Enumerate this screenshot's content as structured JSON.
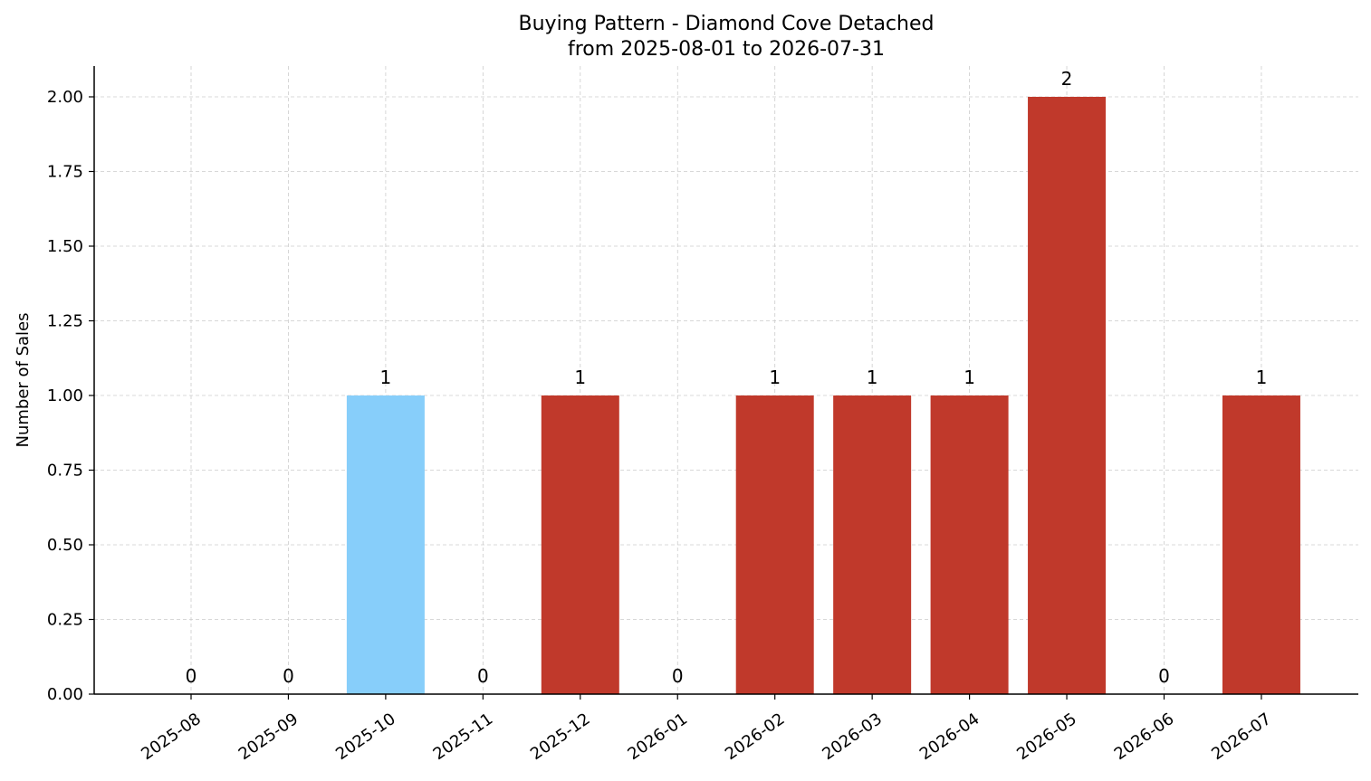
{
  "chart_data": {
    "type": "bar",
    "title": "Buying Pattern - Diamond Cove Detached",
    "subtitle": "from 2025-08-01 to 2026-07-31",
    "xlabel": "",
    "ylabel": "Number of Sales",
    "categories": [
      "2025-08",
      "2025-09",
      "2025-10",
      "2025-11",
      "2025-12",
      "2026-01",
      "2026-02",
      "2026-03",
      "2026-04",
      "2026-05",
      "2026-06",
      "2026-07"
    ],
    "values": [
      0,
      0,
      1,
      0,
      1,
      0,
      1,
      1,
      1,
      2,
      0,
      1
    ],
    "data_labels": [
      "0",
      "0",
      "1",
      "0",
      "1",
      "0",
      "1",
      "1",
      "1",
      "2",
      "0",
      "1"
    ],
    "bar_colors": [
      "#c0392b",
      "#c0392b",
      "#87cefa",
      "#c0392b",
      "#c0392b",
      "#c0392b",
      "#c0392b",
      "#c0392b",
      "#c0392b",
      "#c0392b",
      "#c0392b",
      "#c0392b"
    ],
    "ylim": [
      0,
      2.1
    ],
    "yticks": [
      0,
      0.25,
      0.5,
      0.75,
      1.0,
      1.25,
      1.5,
      1.75,
      2.0
    ],
    "ytick_labels": [
      "0.00",
      "0.25",
      "0.50",
      "0.75",
      "1.00",
      "1.25",
      "1.50",
      "1.75",
      "2.00"
    ],
    "grid": true,
    "legend": "none"
  }
}
